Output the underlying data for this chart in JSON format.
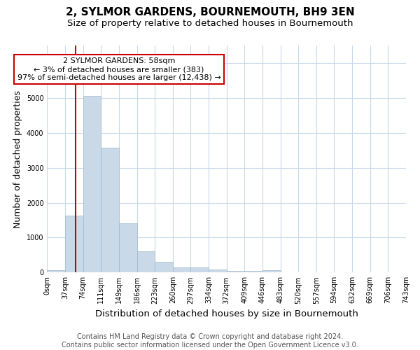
{
  "title": "2, SYLMOR GARDENS, BOURNEMOUTH, BH9 3EN",
  "subtitle": "Size of property relative to detached houses in Bournemouth",
  "xlabel": "Distribution of detached houses by size in Bournemouth",
  "ylabel": "Number of detached properties",
  "bin_labels": [
    "0sqm",
    "37sqm",
    "74sqm",
    "111sqm",
    "149sqm",
    "186sqm",
    "223sqm",
    "260sqm",
    "297sqm",
    "334sqm",
    "372sqm",
    "409sqm",
    "446sqm",
    "483sqm",
    "520sqm",
    "557sqm",
    "594sqm",
    "632sqm",
    "669sqm",
    "706sqm",
    "743sqm"
  ],
  "bar_values": [
    75,
    1630,
    5050,
    3580,
    1400,
    610,
    300,
    155,
    150,
    95,
    40,
    50,
    60,
    0,
    0,
    0,
    0,
    0,
    0,
    0
  ],
  "bar_color": "#c9d9e8",
  "bar_edge_color": "#a0b8cc",
  "vline_color": "#cc0000",
  "annotation_box_text": "2 SYLMOR GARDENS: 58sqm\n← 3% of detached houses are smaller (383)\n97% of semi-detached houses are larger (12,438) →",
  "annotation_box_color": "#ffffff",
  "annotation_box_edge_color": "#cc0000",
  "ylim": [
    0,
    6500
  ],
  "footer_line1": "Contains HM Land Registry data © Crown copyright and database right 2024.",
  "footer_line2": "Contains public sector information licensed under the Open Government Licence v3.0.",
  "background_color": "#ffffff",
  "grid_color": "#c8d8e8",
  "title_fontsize": 11,
  "subtitle_fontsize": 9.5,
  "xlabel_fontsize": 9.5,
  "ylabel_fontsize": 9,
  "footer_fontsize": 7,
  "tick_fontsize": 7
}
